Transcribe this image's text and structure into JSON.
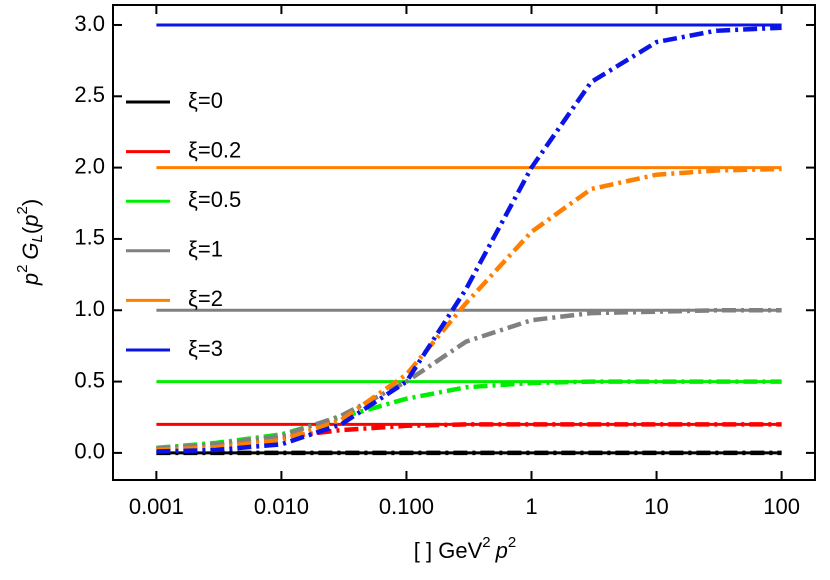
{
  "chart_data": {
    "type": "line",
    "ylabel": [
      "p",
      "2",
      "G",
      "L",
      "(",
      "p",
      "2",
      ")"
    ],
    "xlabel": [
      "[ ] GeV",
      "2",
      "p",
      "2"
    ],
    "log_x": true,
    "x": [
      0.001,
      0.003,
      0.01,
      0.03,
      0.1,
      0.3,
      1,
      3,
      10,
      30,
      100
    ],
    "xlim": [
      0.00045,
      185
    ],
    "ylim": [
      -0.19,
      3.14
    ],
    "xticks": [
      0.001,
      {
        "value": 0.01,
        "label": "0.010"
      },
      {
        "value": 0.1,
        "label": "0.100"
      },
      1,
      10,
      100
    ],
    "yticks": [
      {
        "value": 0,
        "label": "0.0"
      },
      0.5,
      {
        "value": 1,
        "label": "1.0"
      },
      1.5,
      {
        "value": 2,
        "label": "2.0"
      },
      2.5,
      {
        "value": 3,
        "label": "3.0"
      }
    ],
    "series": [
      {
        "name": "ξ=0",
        "color": "#000000",
        "values": [
          0,
          0,
          0,
          0,
          0,
          0,
          0,
          0,
          0,
          0,
          0
        ]
      },
      {
        "name": "ξ=0.2",
        "color": "#ff0000",
        "values": [
          0.2,
          0.2,
          0.2,
          0.2,
          0.2,
          0.2,
          0.2,
          0.2,
          0.2,
          0.2,
          0.2
        ]
      },
      {
        "name": "ξ=0.5",
        "color": "#00ee00",
        "values": [
          0.5,
          0.5,
          0.5,
          0.5,
          0.5,
          0.5,
          0.5,
          0.5,
          0.5,
          0.5,
          0.5
        ]
      },
      {
        "name": "ξ=1",
        "color": "#808080",
        "values": [
          1,
          1,
          1,
          1,
          1,
          1,
          1,
          1,
          1,
          1,
          1
        ]
      },
      {
        "name": "ξ=2",
        "color": "#ff8000",
        "values": [
          2,
          2,
          2,
          2,
          2,
          2,
          2,
          2,
          2,
          2,
          2
        ]
      },
      {
        "name": "ξ=3",
        "color": "#0a14e6",
        "values": [
          3,
          3,
          3,
          3,
          3,
          3,
          3,
          3,
          3,
          3,
          3
        ]
      },
      {
        "color": "#000000",
        "dash": true,
        "values": [
          0,
          0,
          0,
          0,
          0,
          0,
          0,
          0,
          0,
          0,
          0
        ]
      },
      {
        "color": "#ff0000",
        "dash": true,
        "values": [
          0.03,
          0.06,
          0.11,
          0.16,
          0.19,
          0.2,
          0.2,
          0.2,
          0.2,
          0.2,
          0.2
        ]
      },
      {
        "color": "#00ee00",
        "dash": true,
        "values": [
          0.035,
          0.07,
          0.13,
          0.25,
          0.38,
          0.46,
          0.49,
          0.5,
          0.5,
          0.5,
          0.5
        ]
      },
      {
        "color": "#808080",
        "dash": true,
        "values": [
          0.03,
          0.06,
          0.12,
          0.26,
          0.5,
          0.78,
          0.93,
          0.98,
          0.99,
          1,
          1
        ]
      },
      {
        "color": "#ff8000",
        "dash": true,
        "values": [
          0.02,
          0.04,
          0.09,
          0.23,
          0.55,
          1.05,
          1.55,
          1.85,
          1.95,
          1.98,
          1.99
        ]
      },
      {
        "color": "#0a14e6",
        "dash": true,
        "values": [
          0.01,
          0.02,
          0.06,
          0.2,
          0.5,
          1.15,
          2.0,
          2.6,
          2.88,
          2.96,
          2.98
        ]
      }
    ]
  }
}
